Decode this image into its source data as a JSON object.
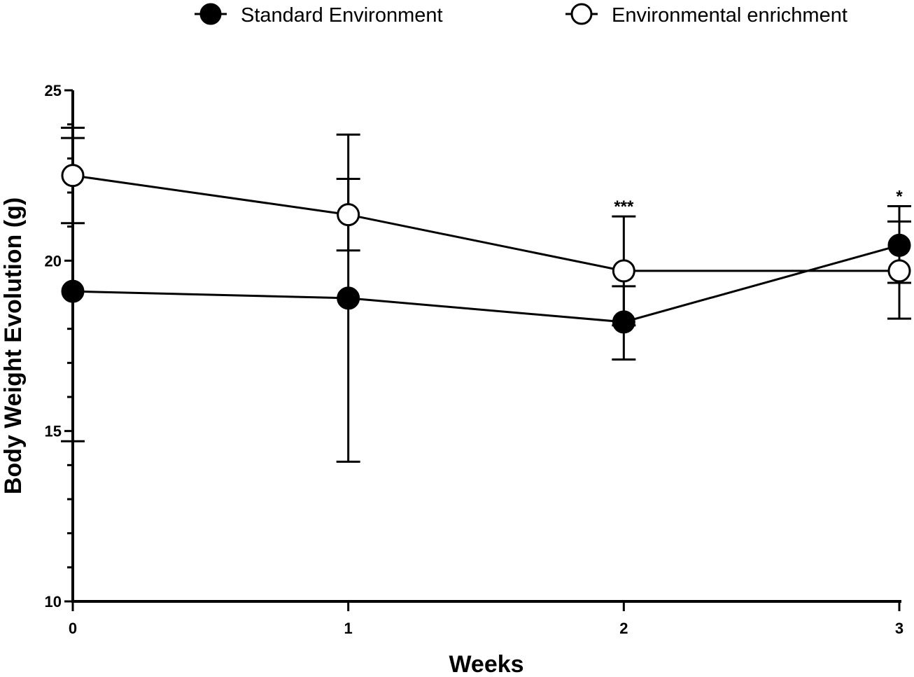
{
  "chart_data": {
    "type": "line",
    "title": "",
    "xlabel": "Weeks",
    "ylabel": "Body Weight Evolution (g)",
    "x": [
      0,
      1,
      2,
      3
    ],
    "xticks": [
      "0",
      "1",
      "2",
      "3"
    ],
    "ylim": [
      10,
      25
    ],
    "yticks": [
      "10",
      "15",
      "20",
      "25"
    ],
    "grid": false,
    "legend_position": "top",
    "series": [
      {
        "name": "Standard Environment",
        "marker": "filled-circle",
        "values": [
          19.1,
          18.9,
          18.2,
          20.45
        ],
        "error_upper": [
          23.9,
          23.7,
          19.25,
          21.15
        ],
        "error_lower": [
          14.7,
          14.1,
          17.1,
          19.35
        ]
      },
      {
        "name": "Environmental enrichment",
        "marker": "open-circle",
        "values": [
          22.5,
          21.35,
          19.7,
          19.7
        ],
        "error_upper": [
          23.6,
          22.4,
          21.3,
          21.6
        ],
        "error_lower": [
          21.1,
          20.3,
          18.1,
          18.3
        ]
      }
    ],
    "annotations": [
      {
        "x": 2,
        "text": "***"
      },
      {
        "x": 3,
        "text": "*"
      }
    ]
  }
}
